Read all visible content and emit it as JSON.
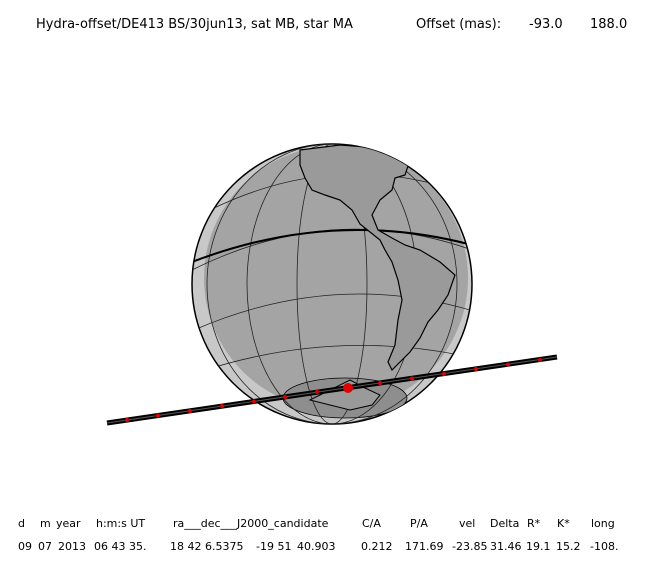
{
  "header": {
    "title": "Hydra-offset/DE413 BS/30jun13, sat MB, star MA",
    "offset_label": "Offset (mas):",
    "offset_values": [
      "-93.0",
      "188.0"
    ]
  },
  "table": {
    "columns": [
      "d",
      "m",
      "year",
      "h:m:s UT",
      "ra___dec___J2000_candidate",
      "C/A",
      "P/A",
      "vel",
      "Delta",
      "R*",
      "K*",
      "long"
    ],
    "row": [
      "09",
      "07",
      "2013",
      "06 43 35.",
      "18 42",
      "6.5375",
      "-19 51",
      "40.903",
      "0.212",
      "171.69",
      "-23.85",
      "31.46",
      "19.1",
      "15.2",
      "-108."
    ]
  }
}
